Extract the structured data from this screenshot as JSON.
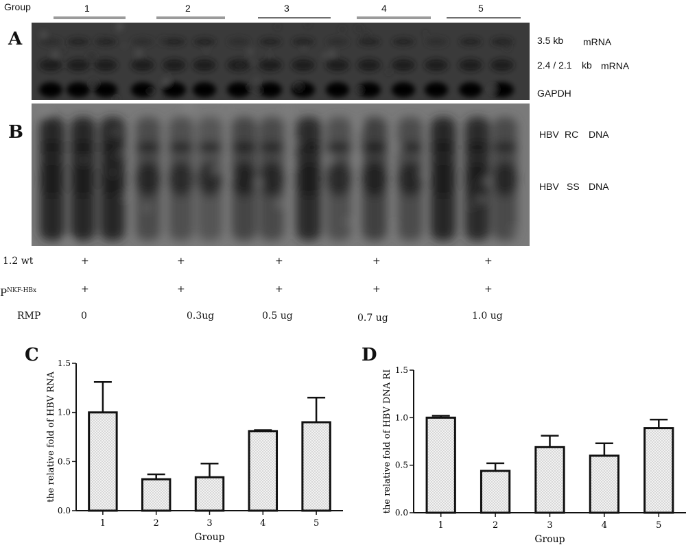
{
  "top": {
    "group_label": "Group",
    "groups": [
      "1",
      "2",
      "3",
      "4",
      "5"
    ]
  },
  "panelA": {
    "letter": "A",
    "labels": {
      "band1_size": "3.5 kb",
      "band1_type": "mRNA",
      "band2_size": "2.4 / 2.1",
      "band2_unit": "kb",
      "band2_type": "mRNA",
      "band3": "GAPDH"
    }
  },
  "panelB": {
    "letter": "B",
    "labels": {
      "rc_a": "HBV",
      "rc_b": "RC",
      "rc_c": "DNA",
      "ss_a": "HBV",
      "ss_b": "SS",
      "ss_c": "DNA"
    }
  },
  "conditions": {
    "row1_label": "1.2 wt",
    "row2_label_main": "P",
    "row2_label_sup": "NKF-HBx",
    "row3_label": "RMP",
    "plus": "+",
    "rmp_values": [
      "0",
      "0.3ug",
      "0.5 ug",
      "0.7 ug",
      "1.0 ug"
    ]
  },
  "chart_data": [
    {
      "panel": "C",
      "type": "bar",
      "categories": [
        "1",
        "2",
        "3",
        "4",
        "5"
      ],
      "values": [
        1.0,
        0.32,
        0.34,
        0.81,
        0.9
      ],
      "errors": [
        0.31,
        0.05,
        0.14,
        0.01,
        0.25
      ],
      "ylabel": "the relative fold of HBV RNA",
      "xlabel": "Group",
      "ylim": [
        0,
        1.5
      ],
      "yticks": [
        "0.0",
        "0.5",
        "1.0",
        "1.5"
      ]
    },
    {
      "panel": "D",
      "type": "bar",
      "categories": [
        "1",
        "2",
        "3",
        "4",
        "5"
      ],
      "values": [
        1.0,
        0.44,
        0.69,
        0.6,
        0.89
      ],
      "errors": [
        0.02,
        0.08,
        0.12,
        0.13,
        0.09
      ],
      "ylabel": "the relative fold of HBV DNA RI",
      "xlabel": "Group",
      "ylim": [
        0,
        1.5
      ],
      "yticks": [
        "0.0",
        "0.5",
        "1.0",
        "1.5"
      ]
    }
  ]
}
